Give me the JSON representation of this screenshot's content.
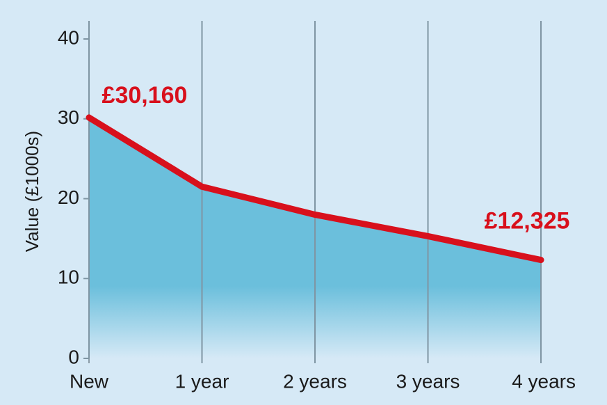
{
  "chart_data": {
    "type": "area",
    "y_label": "Value (£1000s)",
    "categories": [
      "New",
      "1 year",
      "2 years",
      "3 years",
      "4 years"
    ],
    "values": [
      30.16,
      21.5,
      18,
      15.3,
      12.325
    ],
    "value_labels": [
      "£30,160",
      null,
      null,
      null,
      "£12,325"
    ],
    "color": "#d8101c",
    "fill": "#6bbfdc",
    "ylim": [
      0,
      40
    ],
    "yticks": [
      0,
      10,
      20,
      30,
      40
    ],
    "grid": true
  }
}
